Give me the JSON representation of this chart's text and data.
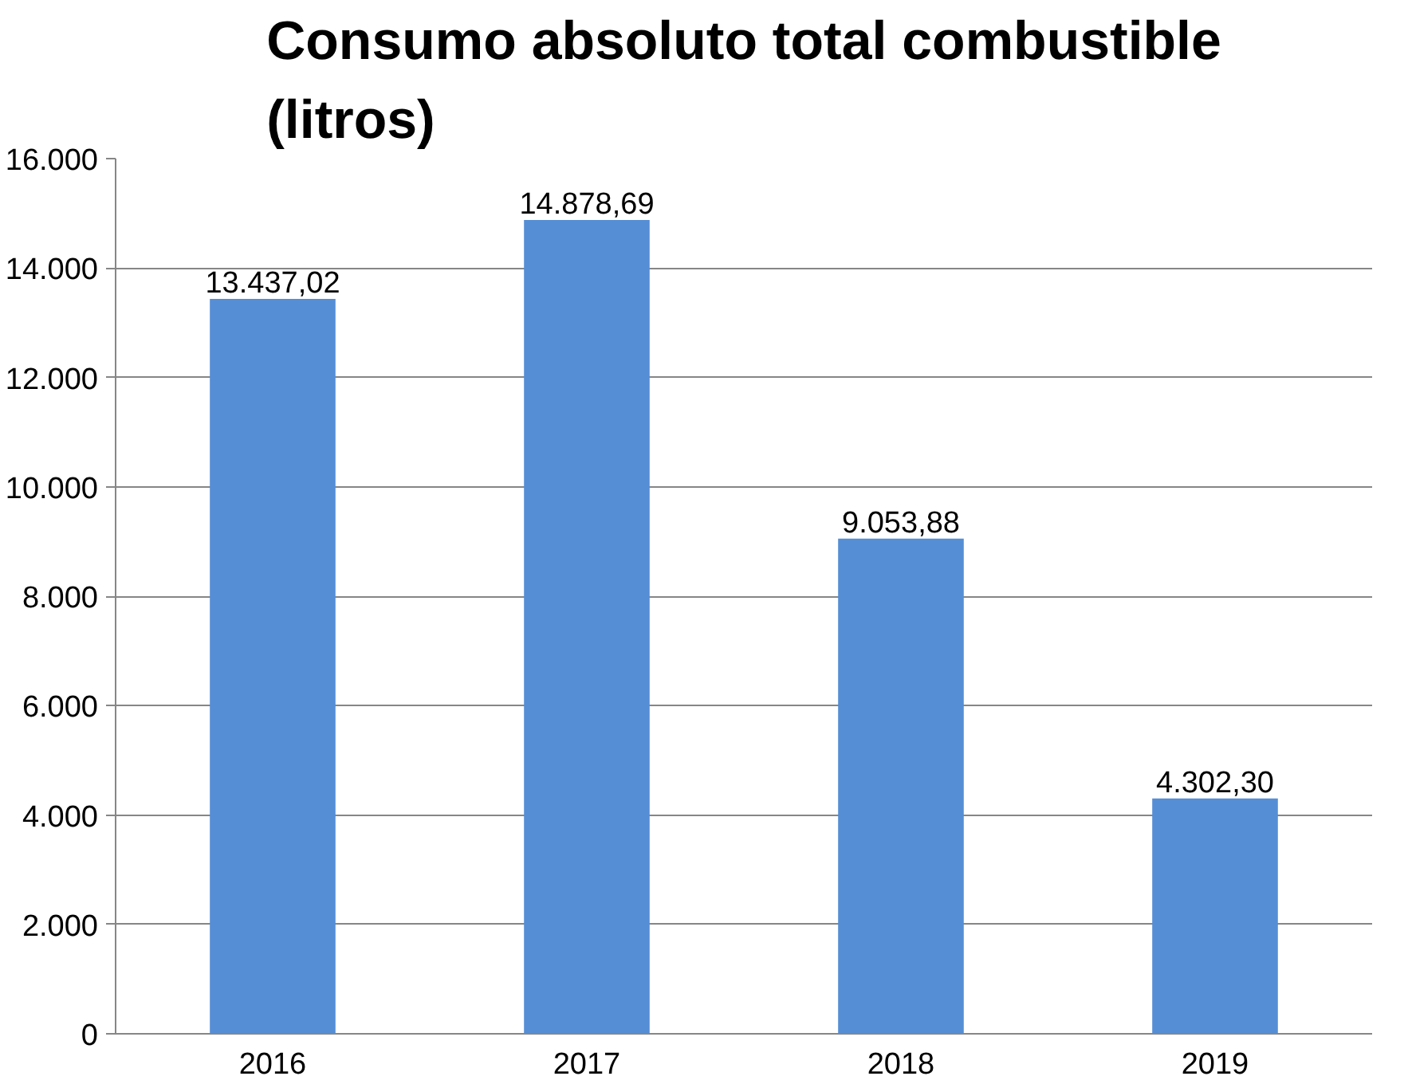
{
  "chart_data": {
    "type": "bar",
    "title": "Consumo absoluto total combustible\n(litros)",
    "categories": [
      "2016",
      "2017",
      "2018",
      "2019"
    ],
    "values": [
      13437.02,
      14878.69,
      9053.88,
      4302.3
    ],
    "value_labels": [
      "13.437,02",
      "14.878,69",
      "9.053,88",
      "4.302,30"
    ],
    "color": "#558ed5",
    "ylim": [
      0,
      16000
    ],
    "yticks": [
      {
        "value": 0,
        "label": "0"
      },
      {
        "value": 2000,
        "label": "2.000"
      },
      {
        "value": 4000,
        "label": "4.000"
      },
      {
        "value": 6000,
        "label": "6.000"
      },
      {
        "value": 8000,
        "label": "8.000"
      },
      {
        "value": 10000,
        "label": "10.000"
      },
      {
        "value": 12000,
        "label": "12.000"
      },
      {
        "value": 14000,
        "label": "14.000"
      },
      {
        "value": 16000,
        "label": "16.000"
      }
    ],
    "grid": "y"
  }
}
